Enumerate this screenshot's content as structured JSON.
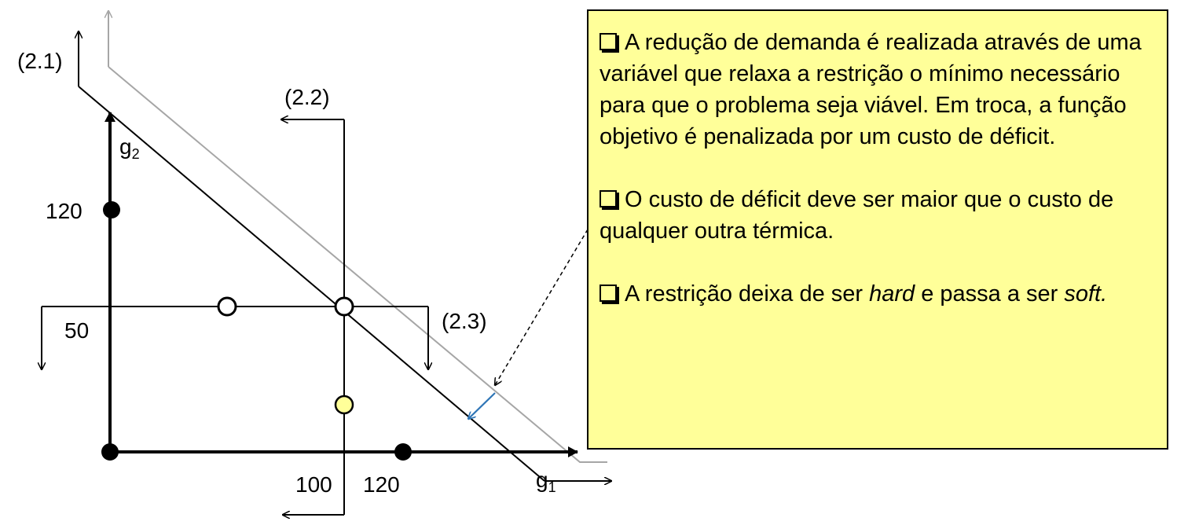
{
  "diagram": {
    "constraint_labels": [
      "(2.1)",
      "(2.2)",
      "(2.3)"
    ],
    "axis_labels": {
      "x": "g",
      "x_sub": "1",
      "y": "g",
      "y_sub": "2"
    },
    "tick_labels": {
      "x1": "100",
      "x2": "120",
      "y1": "120",
      "y2": "50"
    },
    "colors": {
      "line": "#000000",
      "relaxed": "#a6a6a6",
      "arrow": "#2e75b6",
      "yellow_point": "#ffff99"
    }
  },
  "note": {
    "bullets": [
      {
        "text": "A redução de demanda é realizada através de uma variável que relaxa a restrição o mínimo necessário para que o problema seja viável. Em troca, a função objetivo é penalizada por um custo de déficit."
      },
      {
        "text": "O custo de déficit deve ser maior que o custo de qualquer outra térmica."
      },
      {
        "pre": "A restrição deixa de ser ",
        "hard": "hard",
        "mid": " e passa a ser ",
        "soft": "soft."
      }
    ]
  }
}
